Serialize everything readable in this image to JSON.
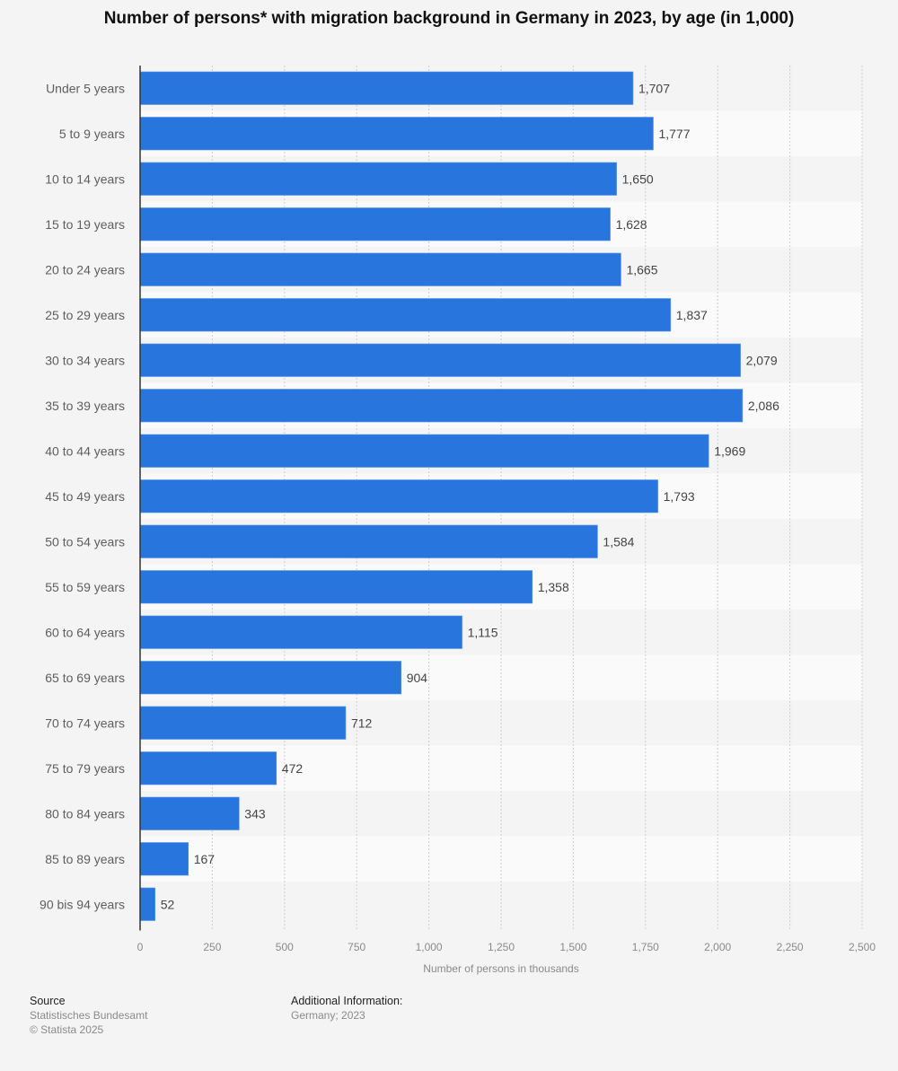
{
  "chart_data": {
    "type": "bar",
    "orientation": "horizontal",
    "title": "Number of persons* with migration background in Germany in 2023, by age (in 1,000)",
    "xlabel": "Number of persons in thousands",
    "ylabel": "",
    "xlim": [
      0,
      2500
    ],
    "xticks": [
      0,
      250,
      500,
      750,
      1000,
      1250,
      1500,
      1750,
      2000,
      2250,
      2500
    ],
    "xtick_labels": [
      "0",
      "250",
      "500",
      "750",
      "1,000",
      "1,250",
      "1,500",
      "1,750",
      "2,000",
      "2,250",
      "2,500"
    ],
    "grid": true,
    "bar_color": "#2876dd",
    "categories": [
      "Under 5 years",
      "5 to 9 years",
      "10 to 14 years",
      "15 to 19 years",
      "20 to 24 years",
      "25 to 29 years",
      "30 to 34 years",
      "35 to 39 years",
      "40 to 44 years",
      "45 to 49 years",
      "50 to 54 years",
      "55 to 59 years",
      "60 to 64 years",
      "65 to 69 years",
      "70 to 74 years",
      "75 to 79 years",
      "80 to 84 years",
      "85 to 89 years",
      "90 bis 94 years"
    ],
    "values": [
      1707,
      1777,
      1650,
      1628,
      1665,
      1837,
      2079,
      2086,
      1969,
      1793,
      1584,
      1358,
      1115,
      904,
      712,
      472,
      343,
      167,
      52
    ],
    "value_labels": [
      "1,707",
      "1,777",
      "1,650",
      "1,628",
      "1,665",
      "1,837",
      "2,079",
      "2,086",
      "1,969",
      "1,793",
      "1,584",
      "1,358",
      "1,115",
      "904",
      "712",
      "472",
      "343",
      "167",
      "52"
    ]
  },
  "footer": {
    "source_heading": "Source",
    "source_lines": [
      "Statistisches Bundesamt",
      "© Statista 2025"
    ],
    "info_heading": "Additional Information:",
    "info_lines": [
      "Germany; 2023"
    ]
  }
}
